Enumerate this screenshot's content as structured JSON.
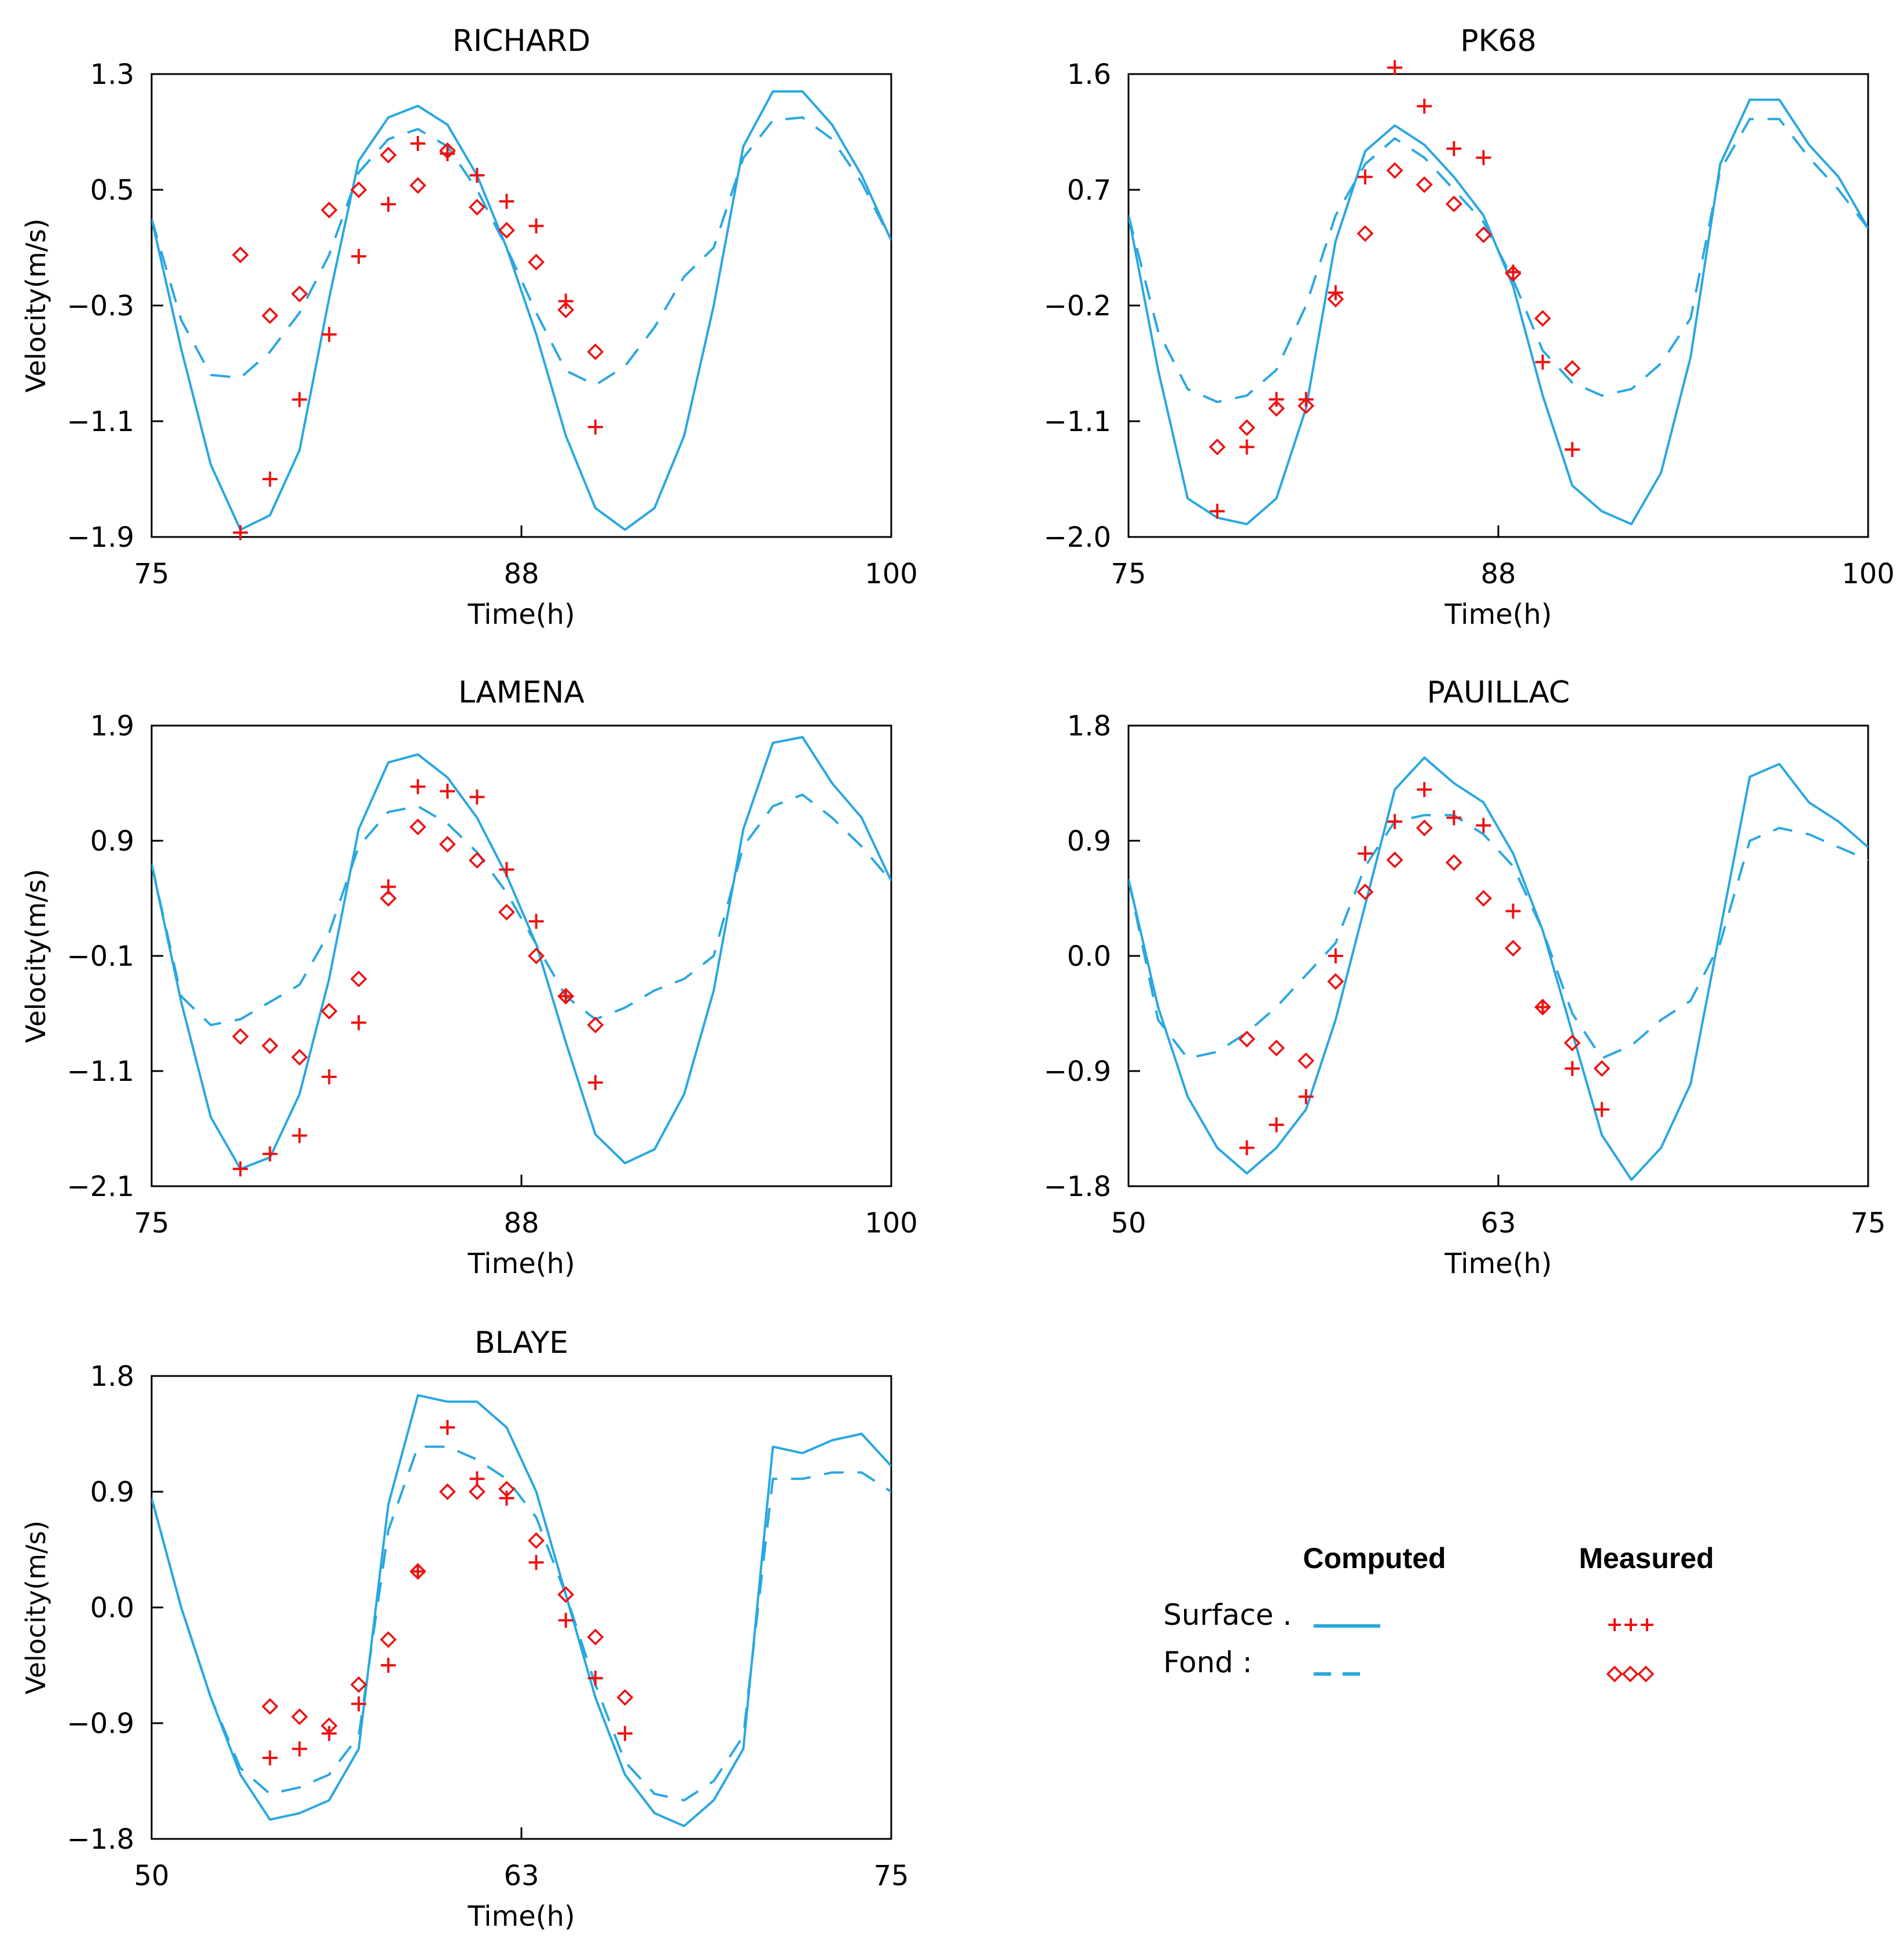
{
  "colors": {
    "computed": "#29a7e1",
    "measured": "#ee1111",
    "axis": "#000000"
  },
  "legend": {
    "computed_title": "Computed",
    "measured_title": "Measured",
    "surface_label": "Surface .",
    "fond_label": "Fond :"
  },
  "chart_data": [
    {
      "type": "line",
      "title": "RICHARD",
      "xlabel": "Time(h)",
      "ylabel": "Velocity(m/s)",
      "xlim": [
        75,
        100
      ],
      "ylim": [
        -1.9,
        1.3
      ],
      "xticks": [
        "75",
        "88",
        "100"
      ],
      "yticks": [
        "1.3",
        "0.5",
        "-0.3",
        "-1.1",
        "-1.9"
      ],
      "series": [
        {
          "name": "Computed Surface",
          "style": "solid",
          "x": [
            75,
            76,
            77,
            78,
            79,
            80,
            81,
            82,
            83,
            84,
            85,
            86,
            87,
            88,
            89,
            90,
            91,
            92,
            93,
            94,
            95,
            96,
            97,
            98,
            99,
            100
          ],
          "y": [
            0.3,
            -0.6,
            -1.4,
            -1.85,
            -1.75,
            -1.3,
            -0.25,
            0.7,
            1.0,
            1.08,
            0.95,
            0.6,
            0.1,
            -0.5,
            -1.2,
            -1.7,
            -1.85,
            -1.7,
            -1.2,
            -0.3,
            0.8,
            1.18,
            1.18,
            0.95,
            0.6,
            0.15
          ]
        },
        {
          "name": "Computed Fond",
          "style": "dashed",
          "x": [
            75,
            76,
            77,
            78,
            79,
            80,
            81,
            82,
            83,
            84,
            85,
            86,
            87,
            88,
            89,
            90,
            91,
            92,
            93,
            94,
            95,
            96,
            97,
            98,
            99,
            100
          ],
          "y": [
            0.3,
            -0.4,
            -0.78,
            -0.8,
            -0.62,
            -0.35,
            0.05,
            0.62,
            0.85,
            0.92,
            0.8,
            0.5,
            0.1,
            -0.35,
            -0.75,
            -0.85,
            -0.72,
            -0.45,
            -0.1,
            0.1,
            0.72,
            0.98,
            1.0,
            0.85,
            0.55,
            0.15
          ]
        }
      ],
      "measured_surface": {
        "x": [
          78,
          79,
          80,
          81,
          82,
          83,
          84,
          85,
          86,
          87,
          88,
          89,
          90
        ],
        "y": [
          -1.87,
          -1.5,
          -0.95,
          -0.5,
          0.04,
          0.4,
          0.82,
          0.75,
          0.6,
          0.42,
          0.25,
          -0.27,
          -1.14
        ]
      },
      "measured_fond": {
        "x": [
          78,
          79,
          80,
          81,
          82,
          83,
          84,
          85,
          86,
          87,
          88,
          89,
          90
        ],
        "y": [
          0.05,
          -0.37,
          -0.22,
          0.36,
          0.5,
          0.74,
          0.53,
          0.77,
          0.38,
          0.22,
          0.0,
          -0.33,
          -0.62
        ]
      }
    },
    {
      "type": "line",
      "title": "PK68",
      "xlabel": "Time(h)",
      "ylabel": "Velocity(m/s)",
      "xlim": [
        75,
        100
      ],
      "ylim": [
        -2.0,
        1.6
      ],
      "xticks": [
        "75",
        "88",
        "100"
      ],
      "yticks": [
        "1.6",
        "0.7",
        "-0.2",
        "-1.1",
        "-2.0"
      ],
      "series": [
        {
          "name": "Computed Surface",
          "style": "solid",
          "x": [
            75,
            76,
            77,
            78,
            79,
            80,
            81,
            82,
            83,
            84,
            85,
            86,
            87,
            88,
            89,
            90,
            91,
            92,
            93,
            94,
            95,
            96,
            97,
            98,
            99,
            100
          ],
          "y": [
            0.5,
            -0.7,
            -1.7,
            -1.85,
            -1.9,
            -1.7,
            -1.0,
            0.3,
            1.0,
            1.2,
            1.05,
            0.8,
            0.5,
            -0.05,
            -0.9,
            -1.6,
            -1.8,
            -1.9,
            -1.5,
            -0.6,
            0.9,
            1.4,
            1.4,
            1.05,
            0.8,
            0.4
          ]
        },
        {
          "name": "Computed Fond",
          "style": "dashed",
          "x": [
            75,
            76,
            77,
            78,
            79,
            80,
            81,
            82,
            83,
            84,
            85,
            86,
            87,
            88,
            89,
            90,
            91,
            92,
            93,
            94,
            95,
            96,
            97,
            98,
            99,
            100
          ],
          "y": [
            0.5,
            -0.4,
            -0.85,
            -0.95,
            -0.9,
            -0.7,
            -0.2,
            0.5,
            0.9,
            1.1,
            0.95,
            0.7,
            0.45,
            0.0,
            -0.55,
            -0.8,
            -0.9,
            -0.85,
            -0.65,
            -0.3,
            0.85,
            1.25,
            1.25,
            0.95,
            0.7,
            0.4
          ]
        }
      ],
      "measured_surface": {
        "x": [
          78,
          79,
          80,
          81,
          82,
          83,
          84,
          85,
          86,
          87,
          88,
          89,
          90
        ],
        "y": [
          -1.8,
          -1.3,
          -0.93,
          -0.93,
          -0.1,
          0.8,
          1.65,
          1.35,
          1.02,
          0.95,
          0.06,
          -0.64,
          -1.32
        ]
      },
      "measured_fond": {
        "x": [
          78,
          79,
          80,
          81,
          82,
          83,
          84,
          85,
          86,
          87,
          88,
          89,
          90
        ],
        "y": [
          -1.3,
          -1.15,
          -1.0,
          -0.98,
          -0.15,
          0.36,
          0.85,
          0.74,
          0.59,
          0.35,
          0.05,
          -0.3,
          -0.69
        ]
      }
    },
    {
      "type": "line",
      "title": "LAMENA",
      "xlabel": "Time(h)",
      "ylabel": "Velocity(m/s)",
      "xlim": [
        75,
        100
      ],
      "ylim": [
        -2.1,
        1.9
      ],
      "xticks": [
        "75",
        "88",
        "100"
      ],
      "yticks": [
        "1.9",
        "0.9",
        "-0.1",
        "-1.1",
        "-2.1"
      ],
      "series": [
        {
          "name": "Computed Surface",
          "style": "solid",
          "x": [
            75,
            76,
            77,
            78,
            79,
            80,
            81,
            82,
            83,
            84,
            85,
            86,
            87,
            88,
            89,
            90,
            91,
            92,
            93,
            94,
            95,
            96,
            97,
            98,
            99,
            100
          ],
          "y": [
            0.7,
            -0.5,
            -1.5,
            -1.95,
            -1.85,
            -1.3,
            -0.3,
            1.0,
            1.58,
            1.65,
            1.45,
            1.1,
            0.6,
            0.0,
            -0.85,
            -1.65,
            -1.9,
            -1.78,
            -1.3,
            -0.4,
            1.0,
            1.75,
            1.8,
            1.4,
            1.1,
            0.55
          ]
        },
        {
          "name": "Computed Fond",
          "style": "dashed",
          "x": [
            75,
            76,
            77,
            78,
            79,
            80,
            81,
            82,
            83,
            84,
            85,
            86,
            87,
            88,
            89,
            90,
            91,
            92,
            93,
            94,
            95,
            96,
            97,
            98,
            99,
            100
          ],
          "y": [
            0.7,
            -0.45,
            -0.7,
            -0.65,
            -0.5,
            -0.35,
            0.1,
            0.85,
            1.15,
            1.2,
            1.05,
            0.8,
            0.45,
            0.0,
            -0.45,
            -0.65,
            -0.55,
            -0.4,
            -0.3,
            -0.1,
            0.85,
            1.2,
            1.3,
            1.1,
            0.85,
            0.55
          ]
        }
      ],
      "measured_surface": {
        "x": [
          78,
          79,
          80,
          81,
          82,
          83,
          84,
          85,
          86,
          87,
          88,
          89,
          90
        ],
        "y": [
          -1.95,
          -1.82,
          -1.66,
          -1.15,
          -0.68,
          0.5,
          1.37,
          1.33,
          1.28,
          0.65,
          0.2,
          -0.45,
          -1.2
        ]
      },
      "measured_fond": {
        "x": [
          78,
          79,
          80,
          81,
          82,
          83,
          84,
          85,
          86,
          87,
          88,
          89,
          90
        ],
        "y": [
          -0.8,
          -0.88,
          -0.98,
          -0.58,
          -0.3,
          0.4,
          1.02,
          0.87,
          0.73,
          0.28,
          -0.1,
          -0.45,
          -0.7
        ]
      }
    },
    {
      "type": "line",
      "title": "PAUILLAC",
      "xlabel": "Time(h)",
      "ylabel": "Velocity(m/s)",
      "xlim": [
        50,
        75
      ],
      "ylim": [
        -1.8,
        1.8
      ],
      "xticks": [
        "50",
        "63",
        "75"
      ],
      "yticks": [
        "1.8",
        "0.9",
        "0.0",
        "-0.9",
        "-1.8"
      ],
      "series": [
        {
          "name": "Computed Surface",
          "style": "solid",
          "x": [
            50,
            51,
            52,
            53,
            54,
            55,
            56,
            57,
            58,
            59,
            60,
            61,
            62,
            63,
            64,
            65,
            66,
            67,
            68,
            69,
            70,
            71,
            72,
            73,
            74,
            75
          ],
          "y": [
            0.6,
            -0.4,
            -1.1,
            -1.5,
            -1.7,
            -1.5,
            -1.2,
            -0.5,
            0.4,
            1.3,
            1.55,
            1.35,
            1.2,
            0.8,
            0.2,
            -0.6,
            -1.4,
            -1.75,
            -1.5,
            -1.0,
            0.2,
            1.4,
            1.5,
            1.2,
            1.05,
            0.85
          ]
        },
        {
          "name": "Computed Fond",
          "style": "dashed",
          "x": [
            50,
            51,
            52,
            53,
            54,
            55,
            56,
            57,
            58,
            59,
            60,
            61,
            62,
            63,
            64,
            65,
            66,
            67,
            68,
            69,
            70,
            71,
            72,
            73,
            74,
            75
          ],
          "y": [
            0.6,
            -0.5,
            -0.8,
            -0.75,
            -0.6,
            -0.4,
            -0.15,
            0.1,
            0.7,
            1.05,
            1.1,
            1.1,
            0.95,
            0.7,
            0.2,
            -0.45,
            -0.8,
            -0.7,
            -0.5,
            -0.35,
            0.1,
            0.9,
            1.0,
            0.95,
            0.85,
            0.75
          ]
        }
      ],
      "measured_surface": {
        "x": [
          54,
          55,
          56,
          57,
          58,
          59,
          60,
          61,
          62,
          63,
          64,
          65,
          66
        ],
        "y": [
          -1.5,
          -1.32,
          -1.1,
          0.0,
          0.8,
          1.05,
          1.3,
          1.08,
          1.02,
          0.35,
          -0.4,
          -0.88,
          -1.2
        ]
      },
      "measured_fond": {
        "x": [
          54,
          55,
          56,
          57,
          58,
          59,
          60,
          61,
          62,
          63,
          64,
          65,
          66
        ],
        "y": [
          -0.65,
          -0.72,
          -0.82,
          -0.2,
          0.5,
          0.75,
          1.0,
          0.73,
          0.45,
          0.06,
          -0.4,
          -0.68,
          -0.88
        ]
      }
    },
    {
      "type": "line",
      "title": "BLAYE",
      "xlabel": "Time(h)",
      "ylabel": "Velocity(m/s)",
      "xlim": [
        50,
        75
      ],
      "ylim": [
        -1.8,
        1.8
      ],
      "xticks": [
        "50",
        "63",
        "75"
      ],
      "yticks": [
        "1.8",
        "0.9",
        "0.0",
        "-0.9",
        "-1.8"
      ],
      "series": [
        {
          "name": "Computed Surface",
          "style": "solid",
          "x": [
            50,
            51,
            52,
            53,
            54,
            55,
            56,
            57,
            58,
            59,
            60,
            61,
            62,
            63,
            64,
            65,
            66,
            67,
            68,
            69,
            70,
            71,
            72,
            73,
            74,
            75
          ],
          "y": [
            0.85,
            0.0,
            -0.7,
            -1.3,
            -1.65,
            -1.6,
            -1.5,
            -1.1,
            0.8,
            1.65,
            1.6,
            1.6,
            1.4,
            0.9,
            0.1,
            -0.7,
            -1.3,
            -1.6,
            -1.7,
            -1.5,
            -1.1,
            1.25,
            1.2,
            1.3,
            1.35,
            1.1
          ]
        },
        {
          "name": "Computed Fond",
          "style": "dashed",
          "x": [
            50,
            51,
            52,
            53,
            54,
            55,
            56,
            57,
            58,
            59,
            60,
            61,
            62,
            63,
            64,
            65,
            66,
            67,
            68,
            69,
            70,
            71,
            72,
            73,
            74,
            75
          ],
          "y": [
            0.85,
            0.0,
            -0.7,
            -1.25,
            -1.45,
            -1.4,
            -1.3,
            -1.0,
            0.6,
            1.25,
            1.25,
            1.15,
            1.0,
            0.7,
            0.1,
            -0.6,
            -1.2,
            -1.45,
            -1.5,
            -1.35,
            -1.0,
            1.0,
            1.0,
            1.05,
            1.05,
            0.9
          ]
        }
      ],
      "measured_surface": {
        "x": [
          54,
          55,
          56,
          57,
          58,
          59,
          60,
          61,
          62,
          63,
          64,
          65,
          66
        ],
        "y": [
          -1.17,
          -1.1,
          -0.98,
          -0.75,
          -0.45,
          0.28,
          1.4,
          1.0,
          0.85,
          0.35,
          -0.1,
          -0.55,
          -0.98
        ]
      },
      "measured_fond": {
        "x": [
          54,
          55,
          56,
          57,
          58,
          59,
          60,
          61,
          62,
          63,
          64,
          65,
          66
        ],
        "y": [
          -0.77,
          -0.85,
          -0.92,
          -0.6,
          -0.25,
          0.28,
          0.9,
          0.9,
          0.92,
          0.52,
          0.1,
          -0.23,
          -0.7
        ]
      }
    }
  ]
}
